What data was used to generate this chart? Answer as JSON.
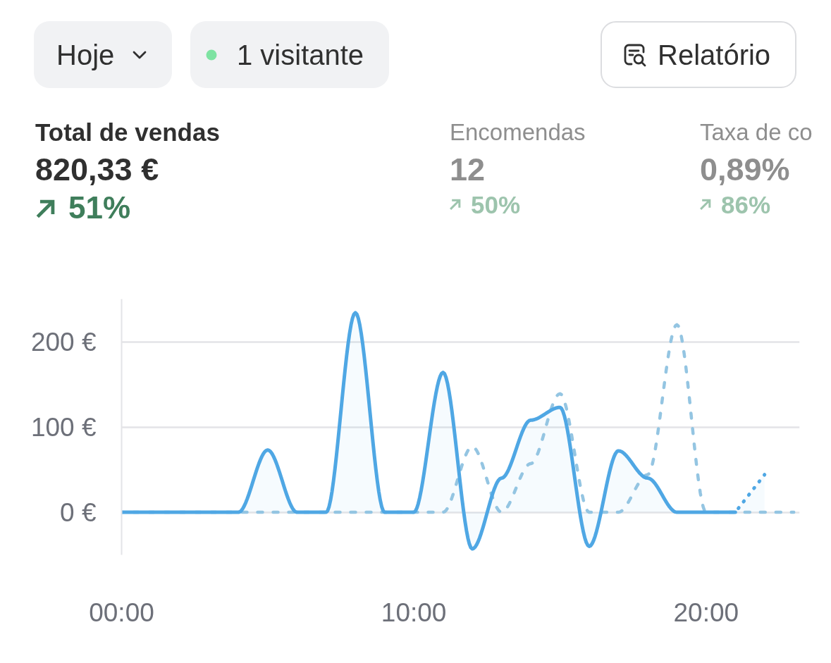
{
  "chart_data": {
    "type": "line",
    "title": "Total de vendas",
    "subtitle": "820,33 €",
    "annotations": [
      "Hoje",
      "1 visitante",
      "Relatório",
      "51%",
      "Encomendas",
      "12",
      "50%",
      "Taxa de co",
      "0,89%",
      "86%"
    ],
    "xlim": [
      0,
      23.2
    ],
    "xticks": [
      {
        "value": 0,
        "label": "00:00"
      },
      {
        "value": 10,
        "label": "10:00"
      },
      {
        "value": 20,
        "label": "20:00"
      }
    ],
    "ylim": [
      -50,
      250
    ],
    "yticks": [
      {
        "value": 0,
        "label": "0 €"
      },
      {
        "value": 100,
        "label": "100 €"
      },
      {
        "value": 200,
        "label": "200 €"
      }
    ],
    "grid": "y",
    "series": [
      {
        "color": "#94c5e2",
        "line_style": "dashed",
        "x": [
          0,
          1,
          2,
          3,
          4,
          5,
          6,
          7,
          8,
          9,
          10,
          11,
          12,
          13,
          14,
          15,
          16,
          17,
          18,
          19,
          20,
          21,
          22,
          23
        ],
        "values": [
          0,
          0,
          0,
          0,
          0,
          0,
          0,
          0,
          0,
          0,
          0,
          0,
          77,
          0,
          57,
          139,
          0,
          0,
          44,
          220,
          0,
          0,
          0,
          0
        ]
      },
      {
        "type": "area",
        "color": "#4fa7e4",
        "line_style": "solid",
        "x": [
          0,
          1,
          2,
          3,
          4,
          5,
          6,
          7,
          8,
          9,
          10,
          11,
          12,
          13,
          14,
          15,
          16,
          17,
          18,
          19,
          20,
          21
        ],
        "values": [
          0,
          0,
          0,
          0,
          0,
          73,
          0,
          0,
          234,
          0,
          0,
          164,
          -43,
          40,
          108,
          123,
          -40,
          72,
          40,
          0,
          0,
          0
        ]
      },
      {
        "type": "area",
        "color": "#4fa7e4",
        "line_style": "dotted",
        "x": [
          21,
          22
        ],
        "values": [
          0,
          44
        ]
      }
    ]
  }
}
